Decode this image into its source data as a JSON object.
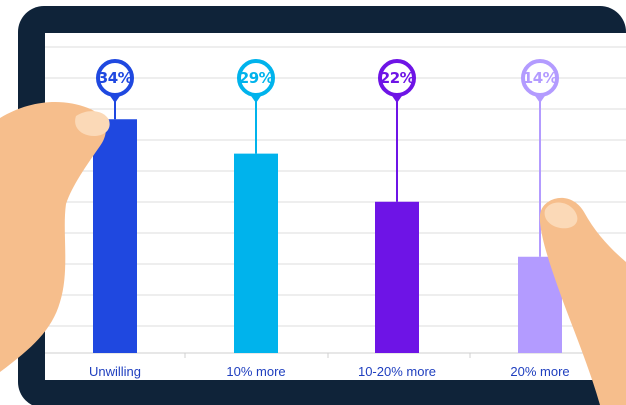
{
  "chart_data": {
    "type": "bar",
    "categories": [
      "Unwilling",
      "10% more",
      "10-20% more",
      "20% more"
    ],
    "values": [
      34,
      29,
      22,
      14
    ],
    "value_labels": [
      "34%",
      "29%",
      "22%",
      "14%"
    ],
    "ylim": [
      0,
      40
    ],
    "grid": true,
    "legend": "none",
    "colors": [
      "#1f48e0",
      "#00b3ec",
      "#6e14e6",
      "#b39bff"
    ]
  },
  "tablet": {
    "frame_color": "#0f2339",
    "screen_color": "#ffffff",
    "grid_color": "#dcdcdc",
    "skin_color": "#f6be8c",
    "nail_color": "#fbd9b7",
    "label_color": "#1f3fbf"
  }
}
